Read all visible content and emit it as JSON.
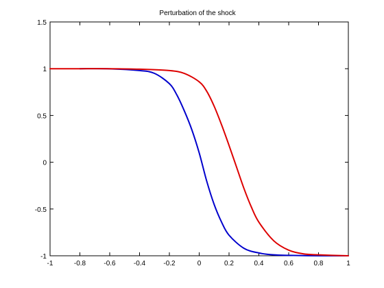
{
  "chart_data": {
    "type": "line",
    "title": "Perturbation of the shock",
    "xlabel": "",
    "ylabel": "",
    "xlim": [
      -1,
      1
    ],
    "ylim": [
      -1,
      1.5
    ],
    "xticks": [
      -1,
      -0.8,
      -0.6,
      -0.4,
      -0.2,
      0,
      0.2,
      0.4,
      0.6,
      0.8,
      1
    ],
    "xtick_labels": [
      "-1",
      "-0.8",
      "-0.6",
      "-0.4",
      "-0.2",
      "0",
      "0.2",
      "0.4",
      "0.6",
      "0.8",
      "1"
    ],
    "yticks": [
      -1,
      -0.5,
      0,
      0.5,
      1,
      1.5
    ],
    "ytick_labels": [
      "-1",
      "-0.5",
      "0",
      "0.5",
      "1",
      "1.5"
    ],
    "grid": false,
    "series": [
      {
        "color": "#0000cc",
        "x": [
          -0.8,
          -0.6,
          -0.4,
          -0.3,
          -0.2,
          -0.15,
          -0.1,
          -0.05,
          0,
          0.05,
          0.1,
          0.15,
          0.2,
          0.3,
          0.4,
          0.5,
          0.6,
          0.8,
          1.0
        ],
        "y": [
          1.0,
          0.999,
          0.98,
          0.95,
          0.84,
          0.72,
          0.55,
          0.35,
          0.1,
          -0.2,
          -0.45,
          -0.64,
          -0.78,
          -0.92,
          -0.97,
          -0.99,
          -0.995,
          -1.0,
          -1.0
        ]
      },
      {
        "color": "#dd0000",
        "x": [
          -1.0,
          -0.8,
          -0.6,
          -0.4,
          -0.2,
          -0.1,
          0,
          0.05,
          0.1,
          0.15,
          0.2,
          0.25,
          0.3,
          0.35,
          0.4,
          0.5,
          0.6,
          0.7,
          0.8,
          1.0
        ],
        "y": [
          1.0,
          1.0,
          1.0,
          0.995,
          0.98,
          0.95,
          0.86,
          0.76,
          0.6,
          0.4,
          0.18,
          -0.05,
          -0.28,
          -0.48,
          -0.64,
          -0.84,
          -0.94,
          -0.98,
          -0.99,
          -1.0
        ]
      }
    ]
  }
}
